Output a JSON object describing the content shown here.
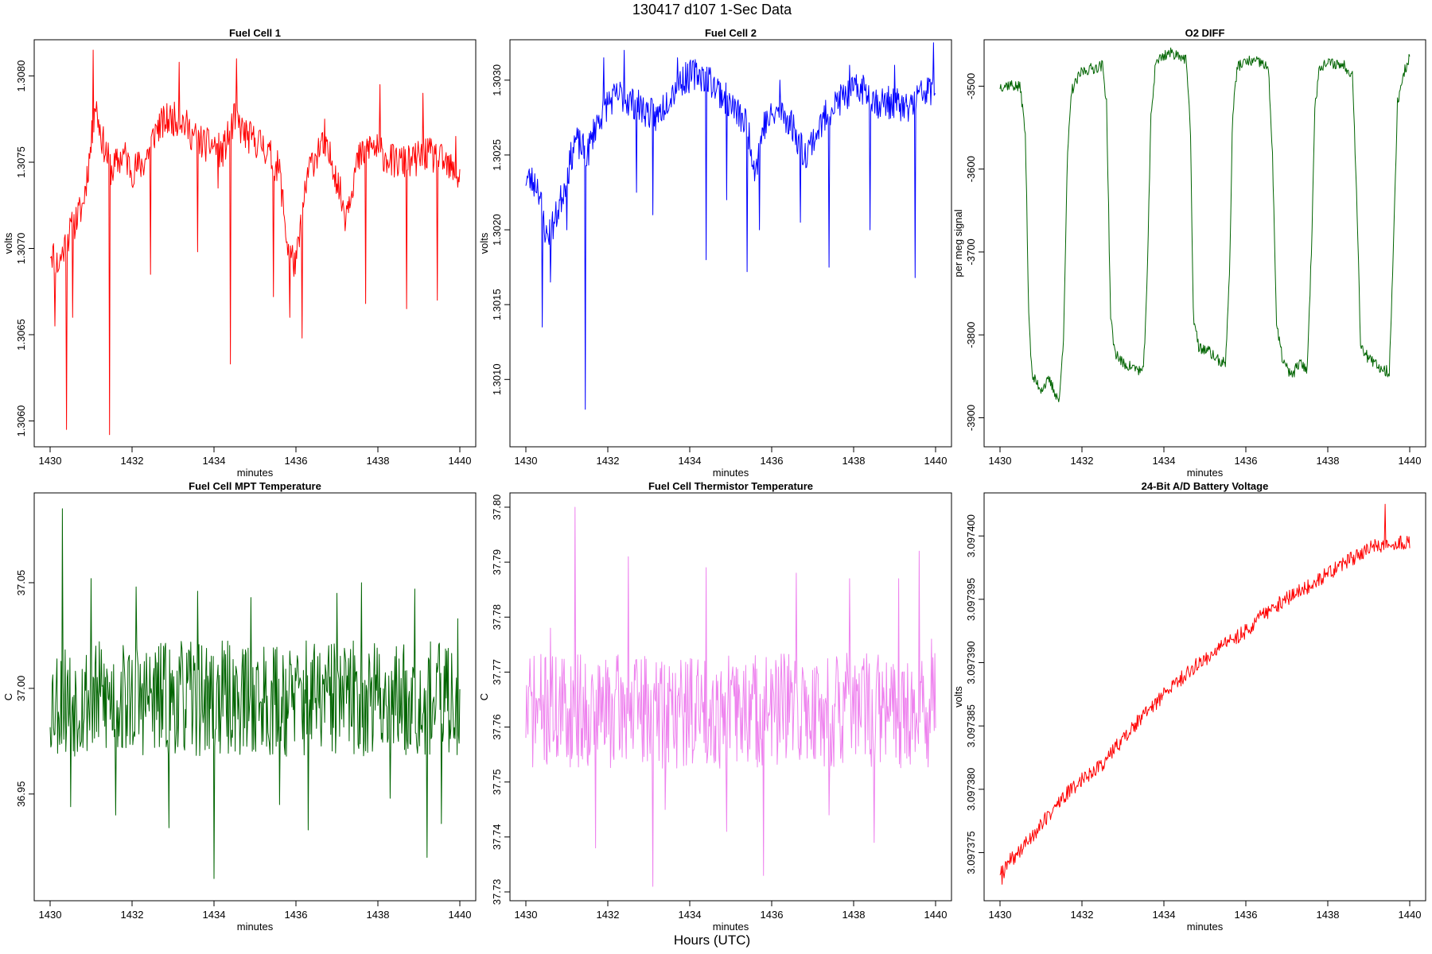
{
  "figure": {
    "title": "130417   d107   1-Sec Data",
    "xlabel": "Hours (UTC)"
  },
  "chart_data": [
    {
      "id": "fc1",
      "type": "line",
      "title": "Fuel Cell 1",
      "xlabel": "minutes",
      "ylabel": "volts",
      "xlim": [
        1430,
        1440
      ],
      "ylim": [
        1.30585,
        1.30821
      ],
      "xticks": [
        "1430",
        "1432",
        "1434",
        "1436",
        "1438",
        "1440"
      ],
      "yticks": [
        "1.3060",
        "1.3065",
        "1.3070",
        "1.3075",
        "1.3080"
      ],
      "color": "#ff0000",
      "anchors": [
        [
          1430.0,
          1.307
        ],
        [
          1430.2,
          1.3069
        ],
        [
          1430.4,
          1.30705
        ],
        [
          1430.6,
          1.30715
        ],
        [
          1430.8,
          1.30725
        ],
        [
          1431.0,
          1.3076
        ],
        [
          1431.1,
          1.30785
        ],
        [
          1431.25,
          1.30765
        ],
        [
          1431.5,
          1.30745
        ],
        [
          1431.8,
          1.30755
        ],
        [
          1432.0,
          1.30745
        ],
        [
          1432.3,
          1.3075
        ],
        [
          1432.6,
          1.3077
        ],
        [
          1432.9,
          1.30775
        ],
        [
          1433.2,
          1.30775
        ],
        [
          1433.5,
          1.30765
        ],
        [
          1433.8,
          1.3076
        ],
        [
          1434.0,
          1.3076
        ],
        [
          1434.2,
          1.30755
        ],
        [
          1434.5,
          1.30775
        ],
        [
          1434.8,
          1.30765
        ],
        [
          1435.2,
          1.3076
        ],
        [
          1435.6,
          1.30745
        ],
        [
          1435.8,
          1.307
        ],
        [
          1436.0,
          1.3069
        ],
        [
          1436.3,
          1.30745
        ],
        [
          1436.6,
          1.3076
        ],
        [
          1436.9,
          1.3075
        ],
        [
          1437.2,
          1.3072
        ],
        [
          1437.5,
          1.3075
        ],
        [
          1437.8,
          1.3076
        ],
        [
          1438.1,
          1.30755
        ],
        [
          1438.4,
          1.3075
        ],
        [
          1438.8,
          1.3075
        ],
        [
          1439.2,
          1.30755
        ],
        [
          1439.6,
          1.3075
        ],
        [
          1440.0,
          1.3074
        ]
      ],
      "noise": 0.0002,
      "seed": 11,
      "spikes": [
        [
          1430.12,
          1.30655
        ],
        [
          1430.4,
          1.30595
        ],
        [
          1430.55,
          1.3066
        ],
        [
          1431.05,
          1.30815
        ],
        [
          1431.45,
          1.30592
        ],
        [
          1432.45,
          1.30685
        ],
        [
          1433.15,
          1.30808
        ],
        [
          1433.6,
          1.30698
        ],
        [
          1434.1,
          1.30735
        ],
        [
          1434.4,
          1.30633
        ],
        [
          1434.55,
          1.3081
        ],
        [
          1435.45,
          1.30672
        ],
        [
          1435.85,
          1.3066
        ],
        [
          1436.15,
          1.30648
        ],
        [
          1436.7,
          1.30775
        ],
        [
          1437.7,
          1.30668
        ],
        [
          1438.05,
          1.30795
        ],
        [
          1438.7,
          1.30665
        ],
        [
          1439.1,
          1.3079
        ],
        [
          1439.45,
          1.3067
        ],
        [
          1439.9,
          1.30765
        ]
      ]
    },
    {
      "id": "fc2",
      "type": "line",
      "title": "Fuel Cell 2",
      "xlabel": "minutes",
      "ylabel": "volts",
      "xlim": [
        1430,
        1440
      ],
      "ylim": [
        1.30055,
        1.30327
      ],
      "xticks": [
        "1430",
        "1432",
        "1434",
        "1436",
        "1438",
        "1440"
      ],
      "yticks": [
        "1.3010",
        "1.3015",
        "1.3020",
        "1.3025",
        "1.3030"
      ],
      "color": "#0000ff",
      "anchors": [
        [
          1430.0,
          1.30235
        ],
        [
          1430.3,
          1.3023
        ],
        [
          1430.5,
          1.30195
        ],
        [
          1430.7,
          1.30205
        ],
        [
          1431.0,
          1.30235
        ],
        [
          1431.2,
          1.3026
        ],
        [
          1431.5,
          1.3025
        ],
        [
          1431.7,
          1.3027
        ],
        [
          1432.0,
          1.30285
        ],
        [
          1432.3,
          1.3029
        ],
        [
          1432.6,
          1.30285
        ],
        [
          1432.9,
          1.3028
        ],
        [
          1433.2,
          1.30275
        ],
        [
          1433.5,
          1.3029
        ],
        [
          1433.8,
          1.303
        ],
        [
          1434.2,
          1.30305
        ],
        [
          1434.5,
          1.303
        ],
        [
          1434.8,
          1.3029
        ],
        [
          1435.1,
          1.3028
        ],
        [
          1435.4,
          1.3027
        ],
        [
          1435.6,
          1.3024
        ],
        [
          1435.8,
          1.3027
        ],
        [
          1436.2,
          1.3028
        ],
        [
          1436.5,
          1.3027
        ],
        [
          1436.8,
          1.3025
        ],
        [
          1437.1,
          1.30265
        ],
        [
          1437.4,
          1.3028
        ],
        [
          1437.8,
          1.3029
        ],
        [
          1438.2,
          1.30295
        ],
        [
          1438.6,
          1.30285
        ],
        [
          1439.0,
          1.30285
        ],
        [
          1439.3,
          1.3028
        ],
        [
          1439.6,
          1.3029
        ],
        [
          1440.0,
          1.30295
        ]
      ],
      "noise": 0.00022,
      "seed": 23,
      "spikes": [
        [
          1430.4,
          1.30135
        ],
        [
          1430.6,
          1.30165
        ],
        [
          1431.0,
          1.302
        ],
        [
          1431.45,
          1.3008
        ],
        [
          1431.9,
          1.30315
        ],
        [
          1432.4,
          1.3032
        ],
        [
          1432.7,
          1.30225
        ],
        [
          1433.1,
          1.3021
        ],
        [
          1433.7,
          1.30315
        ],
        [
          1434.4,
          1.3018
        ],
        [
          1434.9,
          1.3022
        ],
        [
          1435.4,
          1.30172
        ],
        [
          1435.7,
          1.302
        ],
        [
          1436.2,
          1.303
        ],
        [
          1436.7,
          1.30205
        ],
        [
          1437.4,
          1.30175
        ],
        [
          1437.9,
          1.3031
        ],
        [
          1438.4,
          1.302
        ],
        [
          1439.0,
          1.3031
        ],
        [
          1439.5,
          1.30168
        ],
        [
          1439.95,
          1.30325
        ]
      ]
    },
    {
      "id": "o2",
      "type": "line",
      "title": "O2 DIFF",
      "xlabel": "minutes",
      "ylabel": "per meg signal",
      "xlim": [
        1430,
        1440
      ],
      "ylim": [
        -3935,
        -3444
      ],
      "xticks": [
        "1430",
        "1432",
        "1434",
        "1436",
        "1438",
        "1440"
      ],
      "yticks": [
        "-3900",
        "-3800",
        "-3700",
        "-3600",
        "-3500"
      ],
      "color": "#006400",
      "anchors": [
        [
          1430.0,
          -3500
        ],
        [
          1430.25,
          -3498
        ],
        [
          1430.5,
          -3502
        ],
        [
          1430.62,
          -3560
        ],
        [
          1430.7,
          -3770
        ],
        [
          1430.78,
          -3850
        ],
        [
          1431.0,
          -3865
        ],
        [
          1431.2,
          -3855
        ],
        [
          1431.45,
          -3880
        ],
        [
          1431.55,
          -3800
        ],
        [
          1431.65,
          -3580
        ],
        [
          1431.75,
          -3505
        ],
        [
          1432.0,
          -3482
        ],
        [
          1432.3,
          -3478
        ],
        [
          1432.5,
          -3475
        ],
        [
          1432.6,
          -3520
        ],
        [
          1432.7,
          -3780
        ],
        [
          1432.8,
          -3820
        ],
        [
          1433.0,
          -3835
        ],
        [
          1433.3,
          -3840
        ],
        [
          1433.5,
          -3845
        ],
        [
          1433.6,
          -3720
        ],
        [
          1433.68,
          -3540
        ],
        [
          1433.8,
          -3470
        ],
        [
          1434.1,
          -3460
        ],
        [
          1434.4,
          -3462
        ],
        [
          1434.55,
          -3470
        ],
        [
          1434.65,
          -3560
        ],
        [
          1434.72,
          -3780
        ],
        [
          1434.85,
          -3815
        ],
        [
          1435.1,
          -3820
        ],
        [
          1435.3,
          -3830
        ],
        [
          1435.5,
          -3835
        ],
        [
          1435.6,
          -3730
        ],
        [
          1435.68,
          -3530
        ],
        [
          1435.8,
          -3475
        ],
        [
          1436.1,
          -3470
        ],
        [
          1436.4,
          -3472
        ],
        [
          1436.55,
          -3480
        ],
        [
          1436.65,
          -3580
        ],
        [
          1436.75,
          -3790
        ],
        [
          1436.9,
          -3830
        ],
        [
          1437.1,
          -3850
        ],
        [
          1437.3,
          -3835
        ],
        [
          1437.5,
          -3840
        ],
        [
          1437.6,
          -3700
        ],
        [
          1437.68,
          -3530
        ],
        [
          1437.8,
          -3475
        ],
        [
          1438.1,
          -3472
        ],
        [
          1438.4,
          -3475
        ],
        [
          1438.6,
          -3485
        ],
        [
          1438.7,
          -3620
        ],
        [
          1438.8,
          -3810
        ],
        [
          1439.0,
          -3830
        ],
        [
          1439.3,
          -3840
        ],
        [
          1439.5,
          -3845
        ],
        [
          1439.6,
          -3700
        ],
        [
          1439.7,
          -3520
        ],
        [
          1439.85,
          -3485
        ],
        [
          1440.0,
          -3465
        ]
      ],
      "noise": 14,
      "seed": 37,
      "spikes": []
    },
    {
      "id": "mpt",
      "type": "line",
      "title": "Fuel Cell MPT Temperature",
      "xlabel": "minutes",
      "ylabel": "C",
      "xlim": [
        1430,
        1440
      ],
      "ylim": [
        36.8995,
        37.0925
      ],
      "xticks": [
        "1430",
        "1432",
        "1434",
        "1436",
        "1438",
        "1440"
      ],
      "yticks": [
        "36.95",
        "37.00",
        "37.05"
      ],
      "color": "#006400",
      "anchors": [
        [
          1430,
          36.995
        ],
        [
          1435,
          36.995
        ],
        [
          1440,
          36.995
        ]
      ],
      "noise": 0.055,
      "seed": 53,
      "spikes": [
        [
          1430.3,
          37.085
        ],
        [
          1430.5,
          36.944
        ],
        [
          1431.0,
          37.052
        ],
        [
          1431.6,
          36.94
        ],
        [
          1432.1,
          37.048
        ],
        [
          1432.9,
          36.934
        ],
        [
          1433.6,
          37.046
        ],
        [
          1434.0,
          36.91
        ],
        [
          1434.9,
          37.043
        ],
        [
          1435.6,
          36.945
        ],
        [
          1436.3,
          36.933
        ],
        [
          1437.0,
          37.045
        ],
        [
          1437.6,
          37.05
        ],
        [
          1438.3,
          36.948
        ],
        [
          1438.9,
          37.047
        ],
        [
          1439.2,
          36.92
        ],
        [
          1439.55,
          36.936
        ],
        [
          1439.95,
          37.033
        ]
      ]
    },
    {
      "id": "therm",
      "type": "line",
      "title": "Fuel Cell Thermistor Temperature",
      "xlabel": "minutes",
      "ylabel": "C",
      "xlim": [
        1430,
        1440
      ],
      "ylim": [
        37.7284,
        37.8026
      ],
      "xticks": [
        "1430",
        "1432",
        "1434",
        "1436",
        "1438",
        "1440"
      ],
      "yticks": [
        "37.73",
        "37.74",
        "37.75",
        "37.76",
        "37.77",
        "37.78",
        "37.79",
        "37.80"
      ],
      "color": "#ee82ee",
      "anchors": [
        [
          1430,
          37.763
        ],
        [
          1435,
          37.763
        ],
        [
          1440,
          37.763
        ]
      ],
      "noise": 0.021,
      "seed": 71,
      "spikes": [
        [
          1430.6,
          37.778
        ],
        [
          1431.2,
          37.8
        ],
        [
          1431.7,
          37.738
        ],
        [
          1432.5,
          37.791
        ],
        [
          1433.1,
          37.731
        ],
        [
          1433.4,
          37.745
        ],
        [
          1434.4,
          37.789
        ],
        [
          1434.9,
          37.741
        ],
        [
          1435.8,
          37.733
        ],
        [
          1436.6,
          37.788
        ],
        [
          1437.4,
          37.744
        ],
        [
          1437.9,
          37.787
        ],
        [
          1438.5,
          37.739
        ],
        [
          1439.1,
          37.787
        ],
        [
          1439.6,
          37.792
        ],
        [
          1439.9,
          37.776
        ]
      ]
    },
    {
      "id": "batt",
      "type": "line",
      "title": "24-Bit A/D Battery Voltage",
      "xlabel": "minutes",
      "ylabel": "volts",
      "xlim": [
        1430,
        1440
      ],
      "ylim": [
        3.0973712,
        3.0974034
      ],
      "xticks": [
        "1430",
        "1432",
        "1434",
        "1436",
        "1438",
        "1440"
      ],
      "yticks": [
        "3.097375",
        "3.097380",
        "3.097385",
        "3.097390",
        "3.097395",
        "3.097400"
      ],
      "color": "#ff0000",
      "anchors": [
        [
          1430.0,
          3.0973735
        ],
        [
          1430.5,
          3.0973752
        ],
        [
          1431.0,
          3.0973772
        ],
        [
          1431.5,
          3.0973792
        ],
        [
          1432.0,
          3.0973808
        ],
        [
          1432.5,
          3.097382
        ],
        [
          1433.0,
          3.097384
        ],
        [
          1433.5,
          3.0973858
        ],
        [
          1434.0,
          3.0973875
        ],
        [
          1434.5,
          3.097389
        ],
        [
          1435.0,
          3.0973903
        ],
        [
          1435.5,
          3.0973915
        ],
        [
          1436.0,
          3.0973925
        ],
        [
          1436.5,
          3.097394
        ],
        [
          1437.0,
          3.097395
        ],
        [
          1437.5,
          3.097396
        ],
        [
          1438.0,
          3.097397
        ],
        [
          1438.5,
          3.097398
        ],
        [
          1439.0,
          3.097399
        ],
        [
          1439.5,
          3.0973995
        ],
        [
          1440.0,
          3.0973995
        ]
      ],
      "noise": 1.2e-06,
      "seed": 89,
      "spikes": [
        [
          1430.05,
          3.0973725
        ],
        [
          1430.1,
          3.097373
        ],
        [
          1439.4,
          3.0974025
        ]
      ]
    }
  ]
}
